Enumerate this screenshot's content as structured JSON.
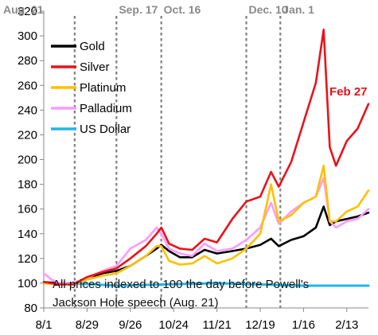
{
  "chart_data": {
    "type": "line",
    "title": "",
    "xlabel": "",
    "ylabel": "",
    "ylim": [
      80,
      320
    ],
    "y_ticks": [
      80,
      100,
      120,
      140,
      160,
      180,
      200,
      220,
      240,
      260,
      280,
      300,
      320
    ],
    "x_start": "2025-08-01",
    "x_end": "2026-02-27",
    "x_ticks": [
      {
        "date": "2025-08-01",
        "label": "8/1"
      },
      {
        "date": "2025-08-29",
        "label": "8/29"
      },
      {
        "date": "2025-09-26",
        "label": "9/26"
      },
      {
        "date": "2025-10-24",
        "label": "10/24"
      },
      {
        "date": "2025-11-21",
        "label": "11/21"
      },
      {
        "date": "2025-12-19",
        "label": "12/19"
      },
      {
        "date": "2026-01-16",
        "label": "1/16"
      },
      {
        "date": "2026-02-13",
        "label": "2/13"
      }
    ],
    "grid": false,
    "legend_position": "top-left",
    "events": [
      {
        "date": "2025-08-21",
        "label": "Aug. 21"
      },
      {
        "date": "2025-09-17",
        "label": "Sep. 17"
      },
      {
        "date": "2025-10-16",
        "label": "Oct. 16"
      },
      {
        "date": "2025-12-10",
        "label": "Dec. 10"
      },
      {
        "date": "2026-01-01",
        "label": "Jan. 1"
      }
    ],
    "annotations": [
      {
        "text": "Feb 27",
        "date": "2026-02-27",
        "y": 245,
        "color": "#e8131a"
      },
      {
        "text": "All prices indexed to 100 the day before Powell's",
        "line": 1
      },
      {
        "text": "Jackson Hole speech (Aug. 21)",
        "line": 2
      }
    ],
    "series": [
      {
        "name": "Gold",
        "color": "#000000",
        "points": [
          [
            "2025-08-01",
            101
          ],
          [
            "2025-08-11",
            100
          ],
          [
            "2025-08-20",
            100
          ],
          [
            "2025-08-29",
            104
          ],
          [
            "2025-09-08",
            108
          ],
          [
            "2025-09-17",
            110
          ],
          [
            "2025-09-26",
            114
          ],
          [
            "2025-10-06",
            122
          ],
          [
            "2025-10-13",
            128
          ],
          [
            "2025-10-16",
            131
          ],
          [
            "2025-10-21",
            126
          ],
          [
            "2025-10-28",
            121
          ],
          [
            "2025-11-05",
            121
          ],
          [
            "2025-11-13",
            127
          ],
          [
            "2025-11-21",
            124
          ],
          [
            "2025-12-01",
            126
          ],
          [
            "2025-12-10",
            128
          ],
          [
            "2025-12-19",
            131
          ],
          [
            "2025-12-26",
            136
          ],
          [
            "2025-12-31",
            130
          ],
          [
            "2026-01-08",
            135
          ],
          [
            "2026-01-16",
            138
          ],
          [
            "2026-01-24",
            145
          ],
          [
            "2026-01-29",
            162
          ],
          [
            "2026-02-02",
            147
          ],
          [
            "2026-02-06",
            150
          ],
          [
            "2026-02-13",
            152
          ],
          [
            "2026-02-20",
            154
          ],
          [
            "2026-02-27",
            157
          ]
        ]
      },
      {
        "name": "Silver",
        "color": "#e8131a",
        "points": [
          [
            "2025-08-01",
            101
          ],
          [
            "2025-08-11",
            99
          ],
          [
            "2025-08-20",
            99
          ],
          [
            "2025-08-29",
            105
          ],
          [
            "2025-09-08",
            109
          ],
          [
            "2025-09-17",
            112
          ],
          [
            "2025-09-26",
            120
          ],
          [
            "2025-10-06",
            130
          ],
          [
            "2025-10-13",
            140
          ],
          [
            "2025-10-16",
            145
          ],
          [
            "2025-10-21",
            132
          ],
          [
            "2025-10-28",
            128
          ],
          [
            "2025-11-05",
            127
          ],
          [
            "2025-11-13",
            136
          ],
          [
            "2025-11-21",
            133
          ],
          [
            "2025-12-01",
            152
          ],
          [
            "2025-12-10",
            166
          ],
          [
            "2025-12-19",
            170
          ],
          [
            "2025-12-26",
            190
          ],
          [
            "2025-12-31",
            178
          ],
          [
            "2026-01-08",
            198
          ],
          [
            "2026-01-16",
            230
          ],
          [
            "2026-01-24",
            262
          ],
          [
            "2026-01-29",
            305
          ],
          [
            "2026-02-02",
            210
          ],
          [
            "2026-02-06",
            195
          ],
          [
            "2026-02-13",
            215
          ],
          [
            "2026-02-20",
            225
          ],
          [
            "2026-02-27",
            245
          ]
        ]
      },
      {
        "name": "Platinum",
        "color": "#ffc000",
        "points": [
          [
            "2025-08-01",
            100
          ],
          [
            "2025-08-11",
            99
          ],
          [
            "2025-08-20",
            99
          ],
          [
            "2025-08-29",
            103
          ],
          [
            "2025-09-08",
            106
          ],
          [
            "2025-09-17",
            108
          ],
          [
            "2025-09-26",
            114
          ],
          [
            "2025-10-06",
            122
          ],
          [
            "2025-10-13",
            130
          ],
          [
            "2025-10-16",
            130
          ],
          [
            "2025-10-21",
            118
          ],
          [
            "2025-10-28",
            115
          ],
          [
            "2025-11-05",
            116
          ],
          [
            "2025-11-13",
            122
          ],
          [
            "2025-11-21",
            116
          ],
          [
            "2025-12-01",
            120
          ],
          [
            "2025-12-10",
            128
          ],
          [
            "2025-12-19",
            140
          ],
          [
            "2025-12-26",
            180
          ],
          [
            "2025-12-31",
            150
          ],
          [
            "2026-01-08",
            155
          ],
          [
            "2026-01-16",
            165
          ],
          [
            "2026-01-24",
            170
          ],
          [
            "2026-01-29",
            195
          ],
          [
            "2026-02-02",
            150
          ],
          [
            "2026-02-06",
            150
          ],
          [
            "2026-02-13",
            158
          ],
          [
            "2026-02-20",
            162
          ],
          [
            "2026-02-27",
            175
          ]
        ]
      },
      {
        "name": "Palladium",
        "color": "#ff99ff",
        "points": [
          [
            "2025-08-01",
            108
          ],
          [
            "2025-08-06",
            103
          ],
          [
            "2025-08-11",
            100
          ],
          [
            "2025-08-20",
            100
          ],
          [
            "2025-08-29",
            104
          ],
          [
            "2025-09-08",
            110
          ],
          [
            "2025-09-17",
            114
          ],
          [
            "2025-09-26",
            128
          ],
          [
            "2025-10-06",
            135
          ],
          [
            "2025-10-13",
            145
          ],
          [
            "2025-10-16",
            140
          ],
          [
            "2025-10-21",
            128
          ],
          [
            "2025-10-28",
            124
          ],
          [
            "2025-11-05",
            122
          ],
          [
            "2025-11-13",
            132
          ],
          [
            "2025-11-21",
            126
          ],
          [
            "2025-12-01",
            128
          ],
          [
            "2025-12-10",
            135
          ],
          [
            "2025-12-19",
            145
          ],
          [
            "2025-12-26",
            165
          ],
          [
            "2025-12-31",
            148
          ],
          [
            "2026-01-08",
            158
          ],
          [
            "2026-01-16",
            165
          ],
          [
            "2026-01-24",
            170
          ],
          [
            "2026-01-29",
            185
          ],
          [
            "2026-02-02",
            150
          ],
          [
            "2026-02-06",
            145
          ],
          [
            "2026-02-13",
            150
          ],
          [
            "2026-02-20",
            152
          ],
          [
            "2026-02-27",
            160
          ]
        ]
      },
      {
        "name": "US Dollar",
        "color": "#1fb6e8",
        "points": [
          [
            "2025-08-01",
            100
          ],
          [
            "2025-08-20",
            100
          ],
          [
            "2025-09-17",
            98
          ],
          [
            "2025-10-16",
            99
          ],
          [
            "2025-11-21",
            100
          ],
          [
            "2025-12-19",
            99
          ],
          [
            "2026-01-16",
            98
          ],
          [
            "2026-02-13",
            98
          ],
          [
            "2026-02-27",
            98
          ]
        ]
      }
    ]
  }
}
